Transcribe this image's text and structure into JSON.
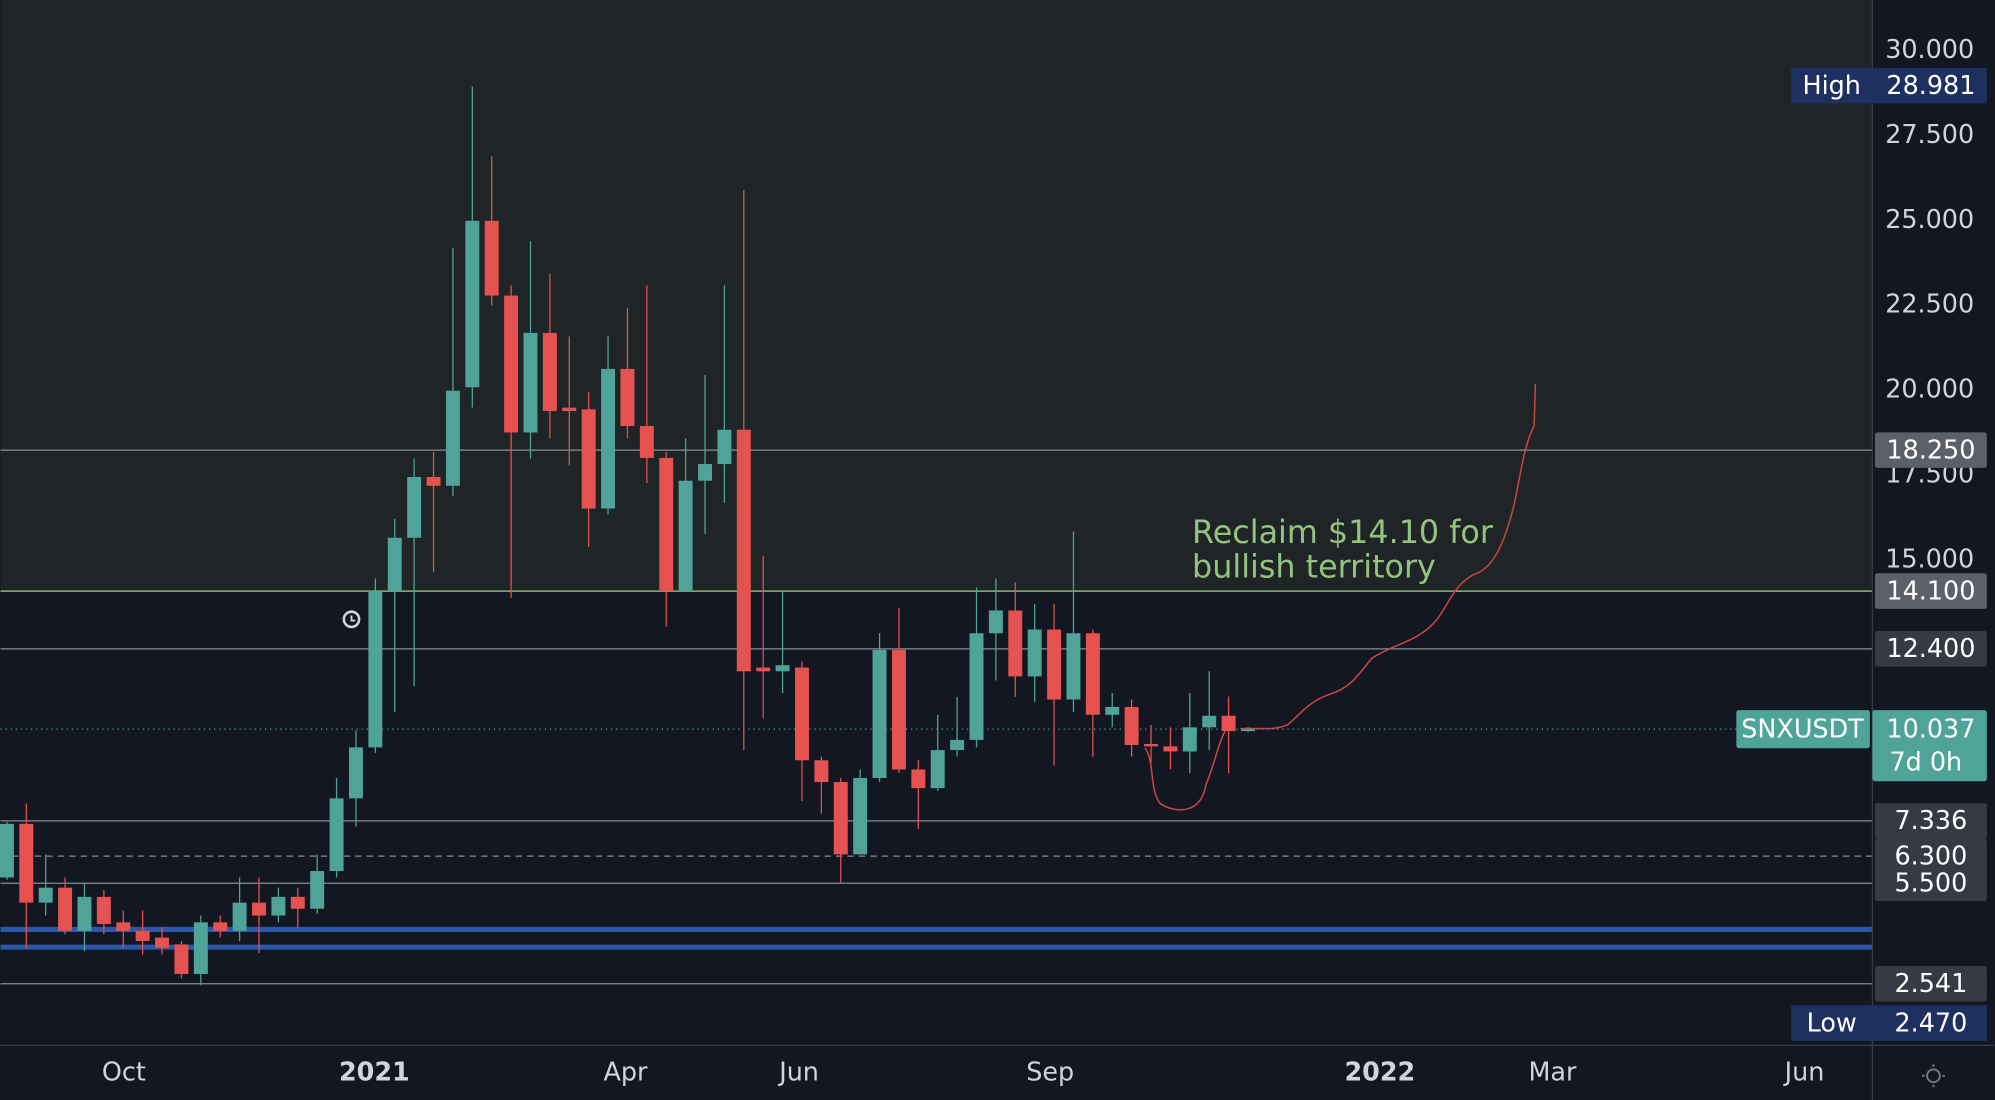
{
  "chart_data": {
    "type": "candlestick",
    "symbol": "SNXUSDT",
    "countdown": "7d 0h",
    "x": [
      0,
      1,
      2,
      3,
      4,
      5,
      6,
      7,
      8,
      9,
      10,
      11,
      12,
      13,
      14,
      15,
      16,
      17,
      18,
      19,
      20,
      21,
      22,
      23,
      24,
      25,
      26,
      27,
      28,
      29,
      30,
      31,
      32,
      33,
      34,
      35,
      36,
      37,
      38,
      39,
      40,
      41,
      42,
      43,
      44,
      45,
      46,
      47,
      48,
      49,
      50,
      51,
      52,
      53,
      54,
      55,
      56,
      57,
      58,
      59,
      60,
      61,
      62,
      63,
      64
    ],
    "open": [
      5.67,
      7.25,
      4.93,
      5.37,
      4.1,
      5.1,
      4.35,
      4.1,
      3.9,
      3.7,
      2.83,
      4.35,
      4.1,
      4.93,
      4.55,
      5.1,
      4.75,
      5.86,
      8.0,
      9.5,
      14.1,
      15.67,
      17.46,
      17.2,
      20.1,
      25.0,
      22.8,
      18.77,
      21.7,
      19.5,
      19.45,
      16.53,
      20.64,
      18.96,
      18.02,
      14.1,
      17.35,
      17.84,
      18.85,
      11.85,
      11.74,
      11.85,
      9.12,
      8.48,
      6.35,
      8.6,
      12.37,
      8.85,
      8.3,
      9.42,
      9.72,
      12.86,
      13.53,
      11.59,
      12.97,
      10.91,
      12.86,
      10.46,
      10.69,
      9.6,
      9.53,
      9.38,
      10.09,
      10.43,
      9.98
    ],
    "high": [
      7.3,
      7.85,
      6.35,
      5.67,
      5.5,
      5.3,
      4.7,
      4.7,
      4.2,
      3.8,
      4.55,
      4.55,
      5.67,
      5.67,
      5.37,
      5.37,
      6.35,
      8.6,
      10.0,
      14.47,
      16.23,
      18.0,
      18.2,
      24.2,
      28.95,
      26.9,
      23.1,
      24.4,
      23.45,
      21.6,
      19.97,
      21.6,
      22.44,
      23.1,
      18.2,
      18.6,
      20.46,
      23.1,
      25.9,
      15.14,
      14.1,
      12.03,
      9.23,
      8.6,
      8.85,
      12.86,
      13.6,
      9.12,
      10.46,
      10.99,
      14.21,
      14.47,
      14.36,
      13.72,
      13.72,
      15.86,
      12.97,
      11.1,
      10.91,
      10.16,
      10.09,
      11.1,
      11.74,
      11.0,
      10.1
    ],
    "low": [
      5.6,
      3.6,
      4.55,
      4.0,
      3.5,
      4.0,
      3.6,
      3.4,
      3.4,
      2.7,
      2.5,
      3.9,
      3.8,
      3.45,
      4.35,
      4.2,
      4.6,
      5.67,
      7.17,
      9.34,
      10.54,
      11.3,
      14.66,
      16.9,
      19.5,
      22.5,
      13.9,
      18.0,
      18.6,
      17.8,
      15.4,
      16.35,
      18.6,
      17.28,
      13.05,
      14.1,
      15.78,
      16.7,
      9.42,
      10.35,
      11.1,
      7.92,
      7.55,
      5.52,
      6.35,
      8.48,
      8.74,
      7.1,
      8.22,
      9.23,
      9.5,
      11.47,
      10.99,
      10.84,
      8.97,
      10.54,
      9.23,
      10.09,
      9.23,
      9.05,
      8.86,
      8.74,
      9.42,
      8.74,
      9.95
    ],
    "close": [
      7.25,
      4.93,
      5.37,
      4.1,
      5.1,
      4.3,
      4.1,
      3.8,
      3.6,
      2.83,
      4.35,
      4.1,
      4.93,
      4.55,
      5.1,
      4.75,
      5.86,
      8.0,
      9.5,
      14.1,
      15.67,
      17.46,
      17.2,
      20.0,
      25.0,
      22.8,
      18.77,
      21.7,
      19.4,
      19.4,
      16.53,
      20.64,
      18.96,
      18.02,
      14.1,
      17.35,
      17.84,
      18.85,
      11.74,
      11.74,
      11.92,
      9.12,
      8.48,
      6.35,
      8.6,
      12.37,
      8.85,
      8.3,
      9.42,
      9.72,
      12.86,
      13.53,
      11.59,
      12.97,
      10.91,
      12.86,
      10.46,
      10.69,
      9.57,
      9.53,
      9.38,
      10.09,
      10.43,
      9.98,
      10.04
    ],
    "colors": {
      "up": "#4fa398",
      "down": "#e5524f"
    },
    "xlim": [
      -0.33,
      96.2
    ],
    "xticks": [
      {
        "value": 6.03,
        "label": "Oct"
      },
      {
        "value": 18.95,
        "label": "2021"
      },
      {
        "value": 31.9,
        "label": "Apr"
      },
      {
        "value": 40.85,
        "label": "Jun"
      },
      {
        "value": 53.8,
        "label": "Sep"
      },
      {
        "value": 70.8,
        "label": "2022"
      },
      {
        "value": 79.7,
        "label": "Mar"
      },
      {
        "value": 92.7,
        "label": "Jun"
      }
    ],
    "ylim": [
      0.73,
      31.5
    ],
    "yticks": [
      {
        "value": 15,
        "label": "15.000"
      },
      {
        "value": 17.5,
        "label": "17.500"
      },
      {
        "value": 20,
        "label": "20.000"
      },
      {
        "value": 22.5,
        "label": "22.500"
      },
      {
        "value": 25,
        "label": "25.000"
      },
      {
        "value": 27.5,
        "label": "27.500"
      },
      {
        "value": 30,
        "label": "30.000"
      }
    ],
    "levels": [
      {
        "value": 18.25,
        "label": "18.250",
        "color": "#8a8d96",
        "box": "#5d606b"
      },
      {
        "value": 14.1,
        "label": "14.100",
        "color": "#9fce8e",
        "box": "#5d606b"
      },
      {
        "value": 12.4,
        "label": "12.400",
        "color": "#8a8d96",
        "box": "#363a45"
      },
      {
        "value": 7.336,
        "label": "7.336",
        "color": "#8a8d96",
        "box": "#363a45"
      },
      {
        "value": 6.3,
        "label": "6.300",
        "color": "#8a8d96",
        "box": "#363a45",
        "dashed": true
      },
      {
        "value": 5.5,
        "label": "5.500",
        "color": "#8a8d96",
        "box": "#363a45"
      },
      {
        "value": 2.541,
        "label": "2.541",
        "color": "#8a8d96",
        "box": "#363a45"
      }
    ],
    "support_lines": [
      4.14,
      3.62
    ],
    "last_price": {
      "value": 10.037,
      "label": "10.037"
    },
    "high_marker": {
      "name": "High",
      "value": 28.981,
      "label": "28.981"
    },
    "low_marker": {
      "name": "Low",
      "value": 2.47,
      "label": "2.470"
    },
    "annotation": [
      "Reclaim $14.10 for",
      "bullish territory"
    ]
  }
}
